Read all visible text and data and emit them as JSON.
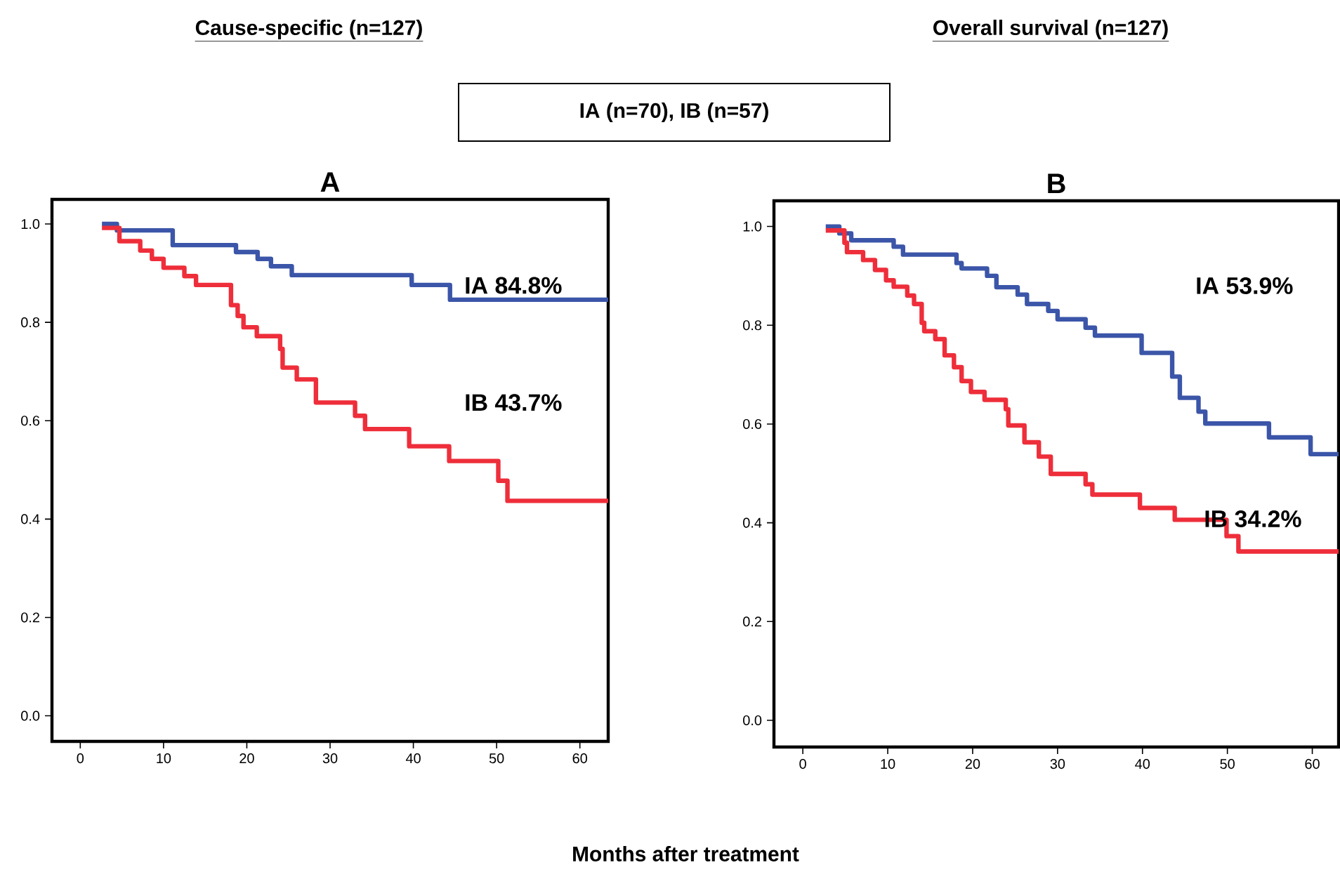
{
  "chart_data": [
    {
      "type": "step",
      "title": "A",
      "subtitle": "Cause-specific (n=127)",
      "xlabel": "Months after treatment",
      "annotations": [
        "IA (n=70), IB (n=57)",
        "IA 84.8%",
        "IB 43.7%"
      ],
      "xlim": [
        -3.4,
        63.4
      ],
      "ylim": [
        -0.052,
        1.05
      ],
      "xticks": [
        0,
        10,
        20,
        30,
        40,
        50,
        60
      ],
      "yticks": [
        {
          "value": 0,
          "label": "0.0"
        },
        {
          "value": 0.2,
          "label": "0.2"
        },
        {
          "value": 0.4,
          "label": "0.4"
        },
        {
          "value": 0.6,
          "label": "0.6"
        },
        {
          "value": 0.8,
          "label": "0.8"
        },
        {
          "value": 1,
          "label": "1.0"
        }
      ],
      "series": [
        {
          "color": "#3b55a8",
          "x": [
            2.6,
            4.4,
            11.1,
            18.7,
            21.3,
            22.9,
            25.4,
            39.8,
            44.4,
            63.4
          ],
          "values": [
            1.0,
            0.987,
            0.957,
            0.943,
            0.929,
            0.914,
            0.896,
            0.876,
            0.846,
            0.846
          ]
        },
        {
          "color": "#ee2e3a",
          "x": [
            2.6,
            4.7,
            7.2,
            8.6,
            10.0,
            12.5,
            13.9,
            18.1,
            18.9,
            19.6,
            21.2,
            24.0,
            24.3,
            26.0,
            28.3,
            33.0,
            34.2,
            39.5,
            44.3,
            50.2,
            51.3,
            63.4
          ],
          "values": [
            0.992,
            0.965,
            0.946,
            0.929,
            0.911,
            0.894,
            0.876,
            0.835,
            0.813,
            0.79,
            0.772,
            0.746,
            0.708,
            0.684,
            0.637,
            0.61,
            0.583,
            0.548,
            0.518,
            0.478,
            0.437,
            0.437
          ]
        }
      ]
    },
    {
      "type": "step",
      "title": "B",
      "subtitle": "Overall survival (n=127)",
      "annotations": [
        "IA 53.9%",
        "IB 34.2%"
      ],
      "xlim": [
        -3.4,
        63.1
      ],
      "ylim": [
        -0.054,
        1.052
      ],
      "xticks": [
        0,
        10,
        20,
        30,
        40,
        50,
        60
      ],
      "yticks": [
        {
          "value": 0,
          "label": "0.0"
        },
        {
          "value": 0.2,
          "label": "0.2"
        },
        {
          "value": 0.4,
          "label": "0.4"
        },
        {
          "value": 0.6,
          "label": "0.6"
        },
        {
          "value": 0.8,
          "label": "0.8"
        },
        {
          "value": 1,
          "label": "1.0"
        }
      ],
      "series": [
        {
          "color": "#3b55a8",
          "x": [
            2.7,
            4.3,
            5.7,
            10.7,
            11.8,
            18.1,
            18.7,
            21.7,
            22.8,
            25.3,
            26.4,
            28.9,
            30.0,
            33.3,
            34.4,
            39.9,
            43.5,
            44.4,
            46.6,
            47.4,
            54.9,
            59.8,
            63.1
          ],
          "values": [
            1.0,
            0.986,
            0.972,
            0.959,
            0.943,
            0.926,
            0.915,
            0.9,
            0.877,
            0.862,
            0.843,
            0.829,
            0.812,
            0.795,
            0.779,
            0.744,
            0.696,
            0.653,
            0.625,
            0.601,
            0.573,
            0.539,
            0.539
          ]
        },
        {
          "color": "#ee2e3a",
          "x": [
            2.7,
            4.9,
            5.2,
            7.1,
            8.5,
            9.8,
            10.7,
            12.3,
            13.1,
            14.0,
            14.3,
            15.6,
            16.7,
            17.8,
            18.7,
            19.8,
            21.4,
            23.9,
            24.2,
            26.1,
            27.8,
            29.2,
            33.3,
            34.1,
            39.7,
            43.8,
            49.9,
            51.3,
            63.1
          ],
          "values": [
            0.992,
            0.967,
            0.948,
            0.932,
            0.912,
            0.891,
            0.878,
            0.86,
            0.843,
            0.805,
            0.788,
            0.772,
            0.739,
            0.715,
            0.687,
            0.665,
            0.649,
            0.63,
            0.597,
            0.563,
            0.534,
            0.499,
            0.478,
            0.457,
            0.43,
            0.406,
            0.373,
            0.342,
            0.342
          ]
        }
      ]
    }
  ]
}
